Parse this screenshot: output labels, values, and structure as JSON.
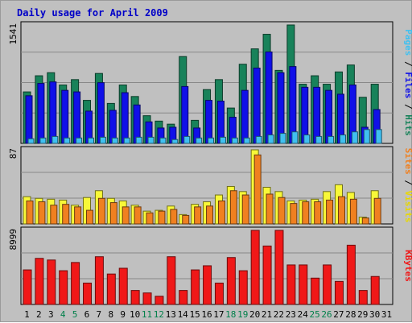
{
  "chart_data": {
    "type": "bar",
    "title": "Daily usage for April 2009",
    "categories": [
      "1",
      "2",
      "3",
      "4",
      "5",
      "6",
      "7",
      "8",
      "9",
      "10",
      "11",
      "12",
      "13",
      "14",
      "15",
      "16",
      "17",
      "18",
      "19",
      "20",
      "21",
      "22",
      "23",
      "24",
      "25",
      "26",
      "27",
      "28",
      "29",
      "30",
      "31"
    ],
    "weekend_days": [
      "4",
      "5",
      "11",
      "12",
      "18",
      "19",
      "25",
      "26"
    ],
    "panels": [
      {
        "id": "hits",
        "max_label": "1541",
        "series": [
          {
            "name": "Hits",
            "color": "#18825a",
            "values": [
              670,
              880,
              920,
              760,
              830,
              560,
              910,
              520,
              760,
              610,
              360,
              290,
              250,
              1130,
              300,
              700,
              830,
              460,
              1030,
              1230,
              1420,
              950,
              1541,
              770,
              880,
              770,
              930,
              1020,
              600,
              770,
              0
            ]
          },
          {
            "name": "Files",
            "color": "#1010e8",
            "values": [
              620,
              780,
              800,
              690,
              670,
              420,
              790,
              430,
              660,
              500,
              280,
              200,
              210,
              740,
              200,
              560,
              550,
              340,
              690,
              980,
              1190,
              920,
              1000,
              730,
              730,
              690,
              640,
              760,
              210,
              440,
              0
            ]
          },
          {
            "name": "Pages",
            "color": "#40c0f0",
            "values": [
              60,
              70,
              90,
              70,
              70,
              70,
              80,
              70,
              70,
              80,
              80,
              70,
              50,
              90,
              70,
              70,
              80,
              70,
              70,
              90,
              110,
              130,
              150,
              110,
              90,
              90,
              110,
              150,
              180,
              180,
              0
            ]
          }
        ]
      },
      {
        "id": "visits",
        "max_label": "87",
        "series": [
          {
            "name": "Visits",
            "color": "#f8f838",
            "values": [
              32,
              30,
              29,
              28,
              22,
              31,
              39,
              30,
              27,
              22,
              15,
              16,
              21,
              11,
              23,
              26,
              34,
              44,
              38,
              87,
              43,
              38,
              27,
              28,
              29,
              38,
              46,
              37,
              8,
              39,
              0
            ]
          },
          {
            "name": "Sites",
            "color": "#f08020",
            "values": [
              27,
              26,
              22,
              23,
              20,
              16,
              30,
              25,
              20,
              20,
              13,
              15,
              17,
              10,
              20,
              21,
              27,
              39,
              34,
              81,
              35,
              31,
              24,
              26,
              26,
              28,
              32,
              29,
              7,
              30,
              0
            ]
          }
        ]
      },
      {
        "id": "kbytes",
        "max_label": "8999",
        "series": [
          {
            "name": "KBytes",
            "color": "#f01818",
            "values": [
              4200,
              5600,
              5400,
              4100,
              5100,
              2600,
              5800,
              3700,
              4400,
              1700,
              1400,
              1000,
              5800,
              1700,
              4200,
              4700,
              2600,
              5700,
              4100,
              8999,
              7100,
              8999,
              4800,
              4800,
              3200,
              4800,
              2800,
              7200,
              1700,
              3400,
              0
            ]
          }
        ]
      }
    ],
    "right_labels": [
      {
        "panel": "hits",
        "parts": [
          {
            "text": "Pages",
            "color": "#40c0f0"
          },
          {
            "text": " / ",
            "color": "#000000"
          },
          {
            "text": "Files",
            "color": "#1010e8"
          },
          {
            "text": " / ",
            "color": "#000000"
          },
          {
            "text": "Hits",
            "color": "#18825a"
          }
        ]
      },
      {
        "panel": "visits",
        "parts": [
          {
            "text": "Sites",
            "color": "#f08020"
          },
          {
            "text": " / ",
            "color": "#000000"
          },
          {
            "text": "Visits",
            "color": "#e8d800"
          }
        ]
      },
      {
        "panel": "kbytes",
        "parts": [
          {
            "text": "KBytes",
            "color": "#f01818"
          }
        ]
      }
    ],
    "colors": {
      "background": "#c0c0c0",
      "plot": "#c0c0c0",
      "grid": "#888888",
      "title": "#0000c8",
      "weekend_label": "#00804a",
      "weekday_label": "#000000"
    },
    "grid": true
  }
}
